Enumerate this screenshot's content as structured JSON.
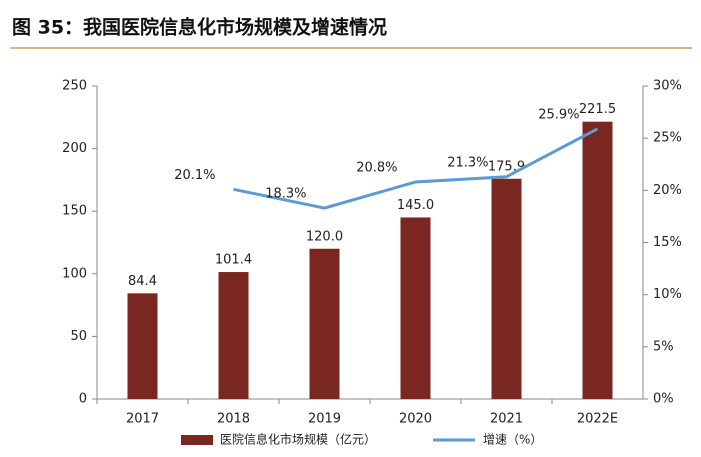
{
  "chart_data": {
    "type": "combo",
    "title": "图 35：我国医院信息化市场规模及增速情况",
    "categories": [
      "2017",
      "2018",
      "2019",
      "2020",
      "2021",
      "2022E"
    ],
    "series": [
      {
        "name": "医院信息化市场规模（亿元）",
        "type": "bar",
        "color": "#7a2621",
        "values": [
          84.4,
          101.4,
          120.0,
          145.0,
          175.9,
          221.5
        ],
        "value_labels": [
          "84.4",
          "101.4",
          "120.0",
          "145.0",
          "175.9",
          "221.5"
        ]
      },
      {
        "name": "增速（%）",
        "type": "line",
        "axis": "y2",
        "color": "#5b9bd5",
        "values": [
          null,
          20.1,
          18.3,
          20.8,
          21.3,
          25.9
        ],
        "value_labels": [
          null,
          "20.1%",
          "18.3%",
          "20.8%",
          "21.3%",
          "25.9%"
        ]
      }
    ],
    "ylim": [
      0,
      250
    ],
    "yticks": [
      0,
      50,
      100,
      150,
      200,
      250
    ],
    "y2lim": [
      0,
      30
    ],
    "y2ticks": [
      {
        "value": 0,
        "label": "0%"
      },
      {
        "value": 5,
        "label": "5%"
      },
      {
        "value": 10,
        "label": "10%"
      },
      {
        "value": 15,
        "label": "15%"
      },
      {
        "value": 20,
        "label": "20%"
      },
      {
        "value": 25,
        "label": "25%"
      },
      {
        "value": 30,
        "label": "30%"
      }
    ],
    "grid": false
  }
}
